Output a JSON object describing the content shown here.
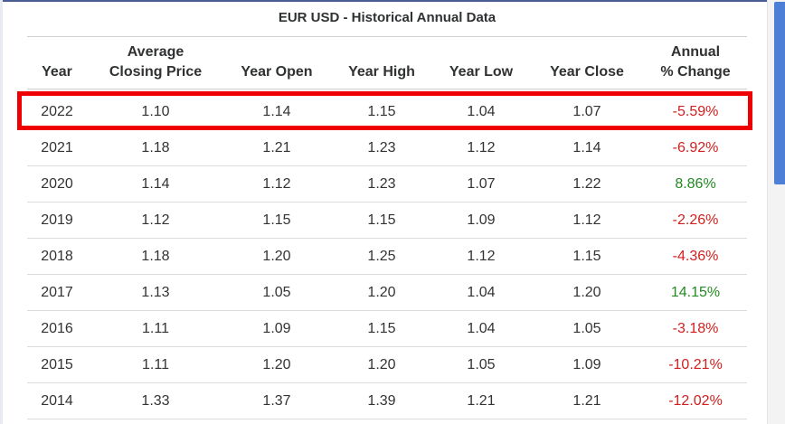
{
  "title": "EUR USD - Historical Annual Data",
  "columns": {
    "year": "Year",
    "avg_line1": "Average",
    "avg_line2": "Closing Price",
    "open": "Year Open",
    "high": "Year High",
    "low": "Year Low",
    "close": "Year Close",
    "change_line1": "Annual",
    "change_line2": "% Change"
  },
  "rows": [
    {
      "year": "2022",
      "avg": "1.10",
      "open": "1.14",
      "high": "1.15",
      "low": "1.04",
      "close": "1.07",
      "change": "-5.59%"
    },
    {
      "year": "2021",
      "avg": "1.18",
      "open": "1.21",
      "high": "1.23",
      "low": "1.12",
      "close": "1.14",
      "change": "-6.92%"
    },
    {
      "year": "2020",
      "avg": "1.14",
      "open": "1.12",
      "high": "1.23",
      "low": "1.07",
      "close": "1.22",
      "change": "8.86%"
    },
    {
      "year": "2019",
      "avg": "1.12",
      "open": "1.15",
      "high": "1.15",
      "low": "1.09",
      "close": "1.12",
      "change": "-2.26%"
    },
    {
      "year": "2018",
      "avg": "1.18",
      "open": "1.20",
      "high": "1.25",
      "low": "1.12",
      "close": "1.15",
      "change": "-4.36%"
    },
    {
      "year": "2017",
      "avg": "1.13",
      "open": "1.05",
      "high": "1.20",
      "low": "1.04",
      "close": "1.20",
      "change": "14.15%"
    },
    {
      "year": "2016",
      "avg": "1.11",
      "open": "1.09",
      "high": "1.15",
      "low": "1.04",
      "close": "1.05",
      "change": "-3.18%"
    },
    {
      "year": "2015",
      "avg": "1.11",
      "open": "1.20",
      "high": "1.20",
      "low": "1.05",
      "close": "1.09",
      "change": "-10.21%"
    },
    {
      "year": "2014",
      "avg": "1.33",
      "open": "1.37",
      "high": "1.39",
      "low": "1.21",
      "close": "1.21",
      "change": "-12.02%"
    }
  ],
  "colors": {
    "negative": "#d11f1f",
    "positive": "#238a23",
    "highlight": "#ee0000",
    "scrollbar_thumb": "#4d7fd6"
  }
}
